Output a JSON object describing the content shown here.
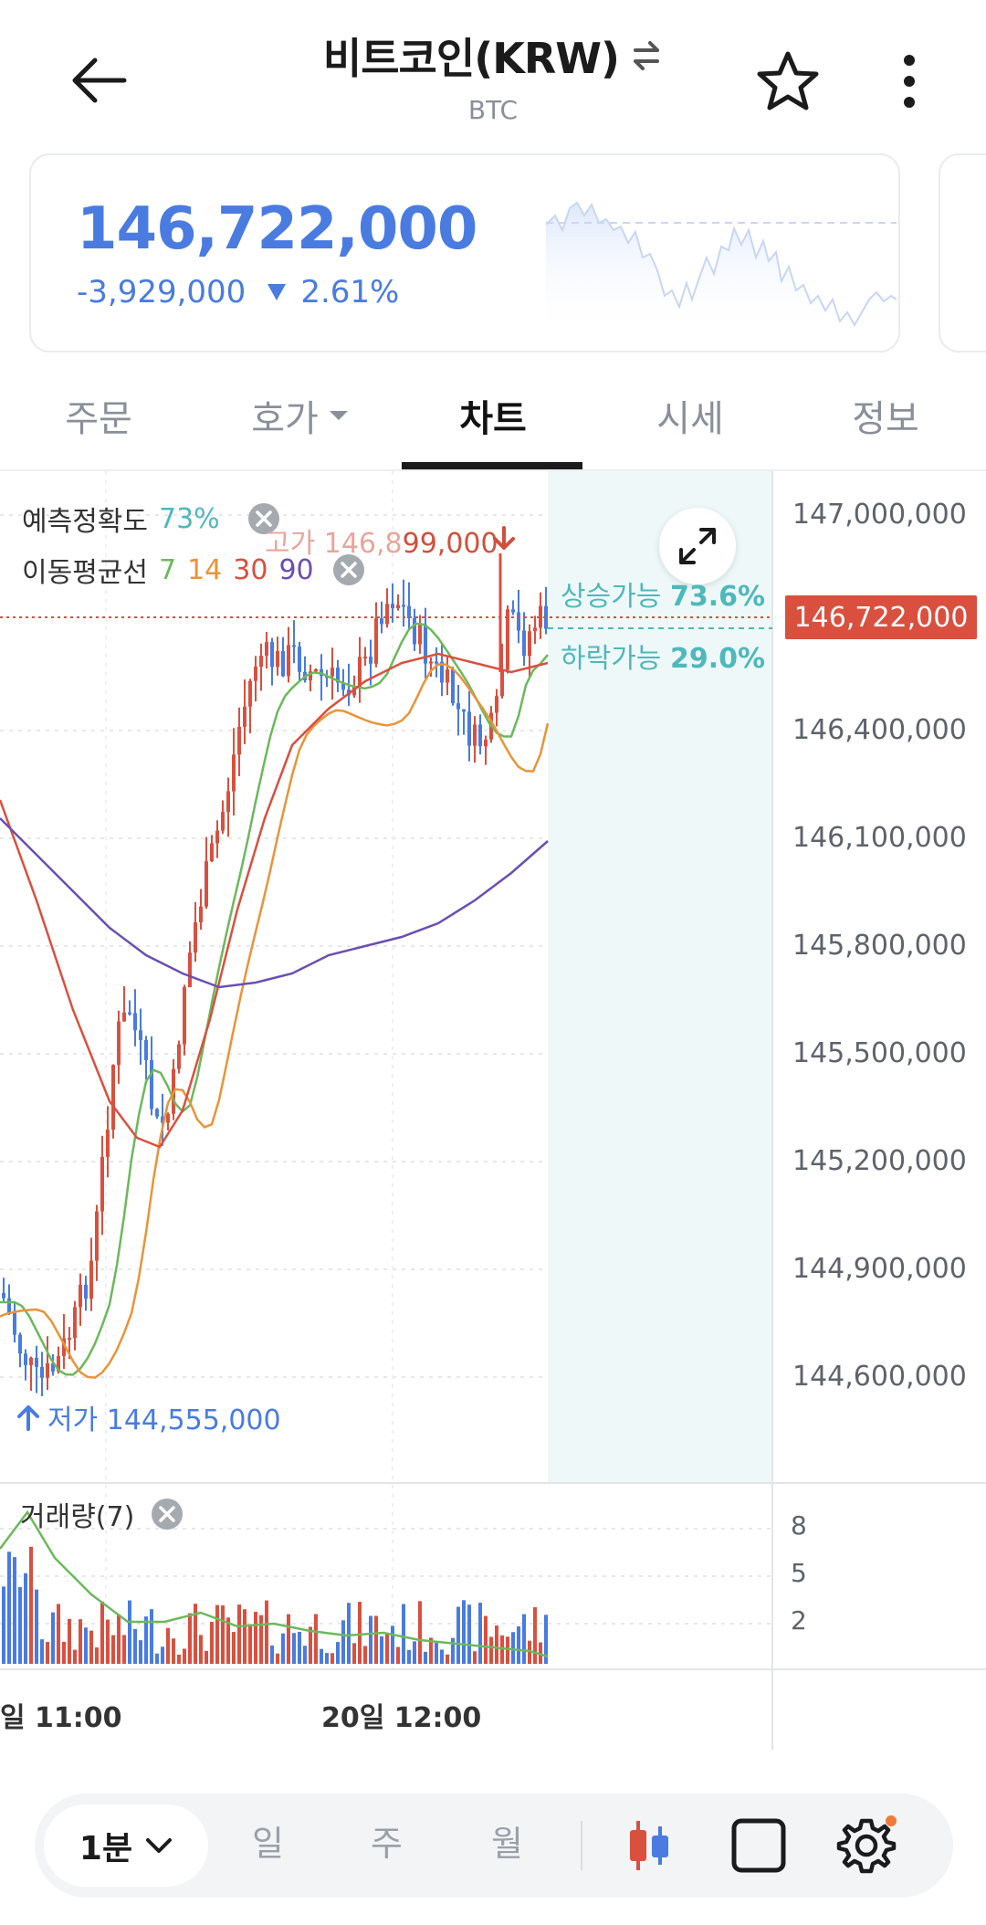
{
  "header": {
    "title": "비트코인(KRW)",
    "symbol": "BTC"
  },
  "price_card": {
    "price": "146,722,000",
    "change": "-3,929,000",
    "change_rate": "2.61%"
  },
  "tabs": [
    {
      "label": "주문"
    },
    {
      "label": "호가"
    },
    {
      "label": "차트"
    },
    {
      "label": "시세"
    },
    {
      "label": "정보"
    }
  ],
  "chart": {
    "prediction_label": "예측정확도",
    "prediction_value": "73%",
    "ma_label": "이동평균선",
    "ma_periods": [
      "7",
      "14",
      "30",
      "90"
    ],
    "high_label": "고가 146,8",
    "high_value": "99,000",
    "low_label": "저가 144,555,000",
    "up_label": "상승가능",
    "up_value": "73.6%",
    "down_label": "하락가능",
    "down_value": "29.0%",
    "current_price_tag": "146,722,000",
    "price_axis": [
      "147,000,000",
      "146,400,000",
      "146,100,000",
      "145,800,000",
      "145,500,000",
      "145,200,000",
      "144,900,000",
      "144,600,000"
    ],
    "volume_label": "거래량(7)",
    "volume_axis": [
      "8",
      "5",
      "2"
    ],
    "time_labels": [
      "일 11:00",
      "20일 12:00"
    ],
    "colors": {
      "up": "#d9503f",
      "down": "#4a7be0",
      "ma7": "#6cb85c",
      "ma14": "#e8943a",
      "ma30": "#d9503f",
      "ma90": "#6a4fb0",
      "prediction_zone": "#eef8f8"
    }
  },
  "chart_data": {
    "type": "candlestick",
    "title": "",
    "ylim": [
      144400000,
      147100000
    ],
    "current_price": 146722000,
    "high": 146899000,
    "low": 144555000,
    "moving_averages": [
      "7",
      "14",
      "30",
      "90"
    ]
  },
  "toolbar": {
    "interval": "1분",
    "periods": [
      "일",
      "주",
      "월"
    ]
  }
}
